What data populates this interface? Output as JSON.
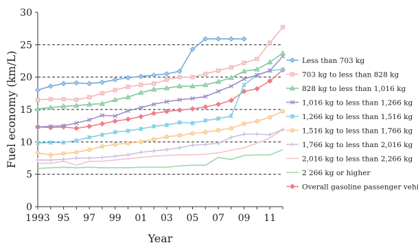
{
  "chart_data": {
    "type": "line",
    "xlabel": "Year",
    "ylabel": "Fuel economy (km/L)",
    "xlim": [
      1993,
      2012
    ],
    "ylim": [
      0,
      30
    ],
    "yticks": [
      0,
      5,
      10,
      15,
      20,
      25,
      30
    ],
    "xticks": [
      {
        "year": 1993,
        "label": "1993"
      },
      {
        "year": 1995,
        "label": "95"
      },
      {
        "year": 1997,
        "label": "97"
      },
      {
        "year": 1999,
        "label": "99"
      },
      {
        "year": 2001,
        "label": "01"
      },
      {
        "year": 2003,
        "label": "03"
      },
      {
        "year": 2005,
        "label": "05"
      },
      {
        "year": 2007,
        "label": "07"
      },
      {
        "year": 2009,
        "label": "09"
      },
      {
        "year": 2011,
        "label": "11"
      }
    ],
    "gridlines": [
      5,
      10,
      15,
      20,
      25
    ],
    "legend_position": "right",
    "x": [
      1993,
      1994,
      1995,
      1996,
      1997,
      1998,
      1999,
      2000,
      2001,
      2002,
      2003,
      2004,
      2005,
      2006,
      2007,
      2008,
      2009,
      2010,
      2011,
      2012
    ],
    "series": [
      {
        "name": "Less than 703 kg",
        "color": "#6fa8dc",
        "fill": "#a9cdef",
        "marker": "diamond",
        "values": [
          18.0,
          18.6,
          19.0,
          19.1,
          19.0,
          19.2,
          19.6,
          19.9,
          20.1,
          20.3,
          20.5,
          20.9,
          24.3,
          25.9,
          25.9,
          25.9,
          25.9,
          null,
          null,
          null
        ]
      },
      {
        "name": "703 kg to less than 828 kg",
        "color": "#f4b6b6",
        "fill": "#f9cfcf",
        "marker": "square",
        "values": [
          16.5,
          16.6,
          16.6,
          16.5,
          16.9,
          17.5,
          18.0,
          18.5,
          18.8,
          19.0,
          19.6,
          20.0,
          20.0,
          20.5,
          21.0,
          21.5,
          22.2,
          22.8,
          25.3,
          27.7
        ]
      },
      {
        "name": "828 kg to less than 1,016 kg",
        "color": "#7fc79a",
        "fill": "#a8dcbb",
        "marker": "triangle",
        "values": [
          15.1,
          15.3,
          15.5,
          15.6,
          15.8,
          15.9,
          16.5,
          16.9,
          17.6,
          18.1,
          18.3,
          18.6,
          18.6,
          18.8,
          19.3,
          19.9,
          20.9,
          21.2,
          22.3,
          23.7
        ]
      },
      {
        "name": "1,016 kg to less than 1,266 kg",
        "color": "#9d8dc9",
        "fill": "#c2b8e0",
        "marker": "x",
        "values": [
          12.3,
          12.4,
          12.5,
          12.9,
          13.4,
          14.1,
          14.0,
          14.8,
          15.3,
          15.8,
          16.2,
          16.5,
          16.7,
          17.0,
          17.8,
          18.6,
          19.7,
          20.3,
          21.0,
          23.2
        ]
      },
      {
        "name": "1,266 kg to less than 1,516 kg",
        "color": "#7ed0e6",
        "fill": "#b3e4f1",
        "marker": "star",
        "values": [
          9.8,
          9.9,
          9.9,
          10.2,
          10.7,
          11.1,
          11.5,
          11.7,
          12.0,
          12.4,
          12.6,
          13.0,
          12.9,
          13.3,
          13.6,
          14.0,
          18.8,
          20.3,
          21.0,
          21.2
        ]
      },
      {
        "name": "1,516 kg to less than 1,766 kg",
        "color": "#f7c98b",
        "fill": "#fbdcae",
        "marker": "circle",
        "values": [
          8.3,
          8.0,
          8.2,
          8.4,
          8.8,
          9.3,
          9.6,
          9.8,
          10.0,
          10.4,
          10.8,
          11.0,
          11.3,
          11.5,
          11.8,
          12.1,
          12.8,
          13.2,
          13.8,
          14.7
        ]
      },
      {
        "name": "1,766 kg to less than 2,016 kg",
        "color": "#c9bfdc",
        "fill": "#c9bfdc",
        "marker": "plus",
        "values": [
          7.2,
          7.2,
          7.3,
          7.5,
          7.5,
          7.6,
          7.8,
          8.0,
          8.4,
          8.6,
          8.8,
          9.1,
          9.5,
          9.6,
          9.8,
          10.7,
          11.2,
          11.2,
          11.1,
          11.9
        ]
      },
      {
        "name": "2,016 kg to less than 2,266 kg",
        "color": "#f3c2cc",
        "fill": "#f3c2cc",
        "marker": "none",
        "values": [
          6.7,
          6.7,
          7.0,
          6.4,
          7.0,
          7.0,
          7.2,
          7.4,
          7.6,
          7.8,
          7.9,
          8.0,
          8.0,
          8.1,
          8.3,
          8.7,
          9.1,
          9.8,
          10.6,
          11.9
        ]
      },
      {
        "name": "2 266 kg or higher",
        "color": "#9fd8a8",
        "fill": "#9fd8a8",
        "marker": "none",
        "values": [
          5.9,
          6.0,
          6.1,
          6.0,
          6.1,
          6.0,
          6.0,
          6.0,
          6.1,
          6.1,
          6.1,
          6.3,
          6.4,
          6.4,
          7.6,
          7.3,
          7.9,
          8.0,
          8.0,
          8.8
        ]
      },
      {
        "name": "Overall gasoline passenger vehicles",
        "color": "#ec7d8a",
        "fill": "#ec7d8a",
        "marker": "diamond",
        "values": [
          12.3,
          12.2,
          12.3,
          12.1,
          12.4,
          12.8,
          13.2,
          13.5,
          13.9,
          14.4,
          14.7,
          14.9,
          15.1,
          15.4,
          15.8,
          16.4,
          17.8,
          18.2,
          19.4,
          21.1
        ]
      }
    ]
  }
}
